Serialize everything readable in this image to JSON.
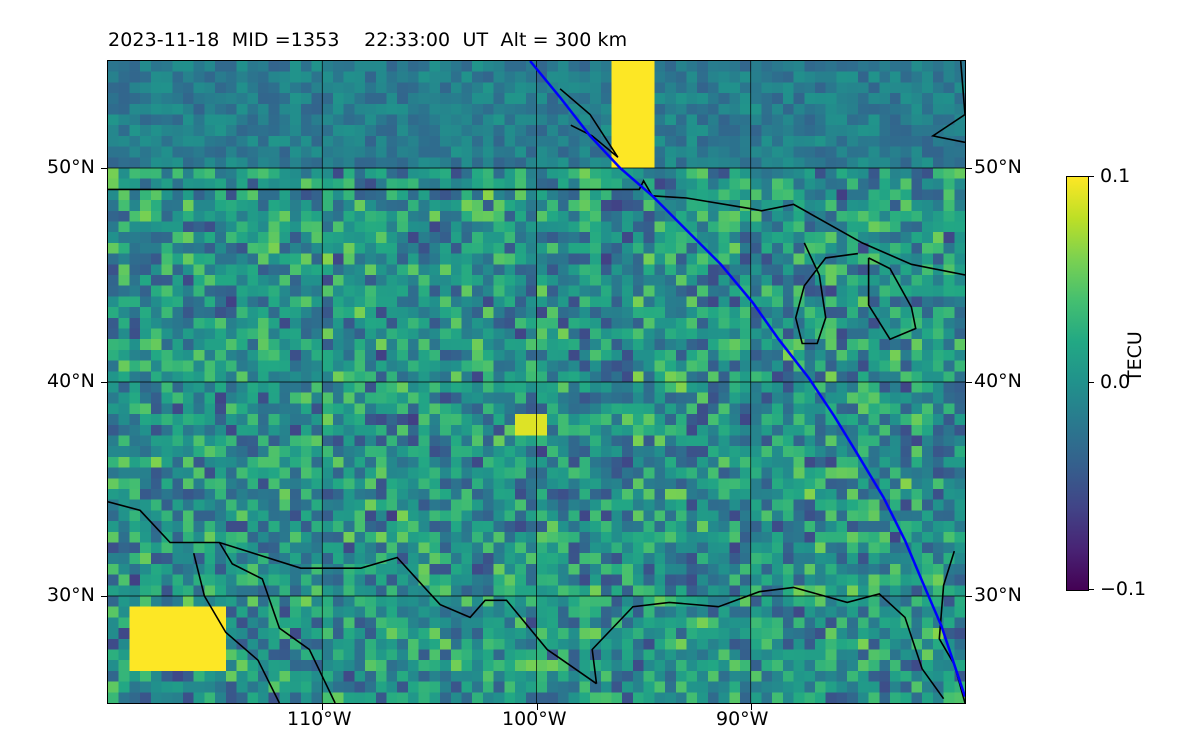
{
  "title": "2023-11-18  MID =1353    22:33:00  UT  Alt = 300 km",
  "map": {
    "projection": "PlateCarree",
    "extent": {
      "lon_min": -120,
      "lon_max": -80,
      "lat_min": 25,
      "lat_max": 55
    },
    "field": "TEC perturbation (TECU)",
    "track_color": "#0000ff",
    "coastline_color": "#000000",
    "gridlines": true
  },
  "lat_ticks": [
    {
      "value": 50,
      "label": "50°N"
    },
    {
      "value": 40,
      "label": "40°N"
    },
    {
      "value": 30,
      "label": "30°N"
    }
  ],
  "lon_ticks": [
    {
      "value": -110,
      "label": "110°W"
    },
    {
      "value": -100,
      "label": "100°W"
    },
    {
      "value": -90,
      "label": "90°W"
    }
  ],
  "colorbar": {
    "label": "TECU",
    "colormap": "viridis",
    "min": -0.1,
    "max": 0.1,
    "ticks": [
      {
        "value": 0.1,
        "label": "0.1"
      },
      {
        "value": 0.0,
        "label": "0.0"
      },
      {
        "value": -0.1,
        "label": "−0.1"
      }
    ]
  },
  "satellite_track": [
    [
      -100.3,
      55
    ],
    [
      -98.9,
      53.3
    ],
    [
      -97.5,
      51.5
    ],
    [
      -96.1,
      50.0
    ],
    [
      -94.6,
      48.7
    ],
    [
      -93.0,
      47.1
    ],
    [
      -91.4,
      45.5
    ],
    [
      -89.9,
      43.7
    ],
    [
      -88.7,
      42.0
    ],
    [
      -87.3,
      40.2
    ],
    [
      -86.1,
      38.4
    ],
    [
      -85.0,
      36.6
    ],
    [
      -83.8,
      34.6
    ],
    [
      -82.8,
      32.6
    ],
    [
      -82.0,
      30.7
    ],
    [
      -81.1,
      28.6
    ],
    [
      -80.0,
      25.3
    ]
  ]
}
